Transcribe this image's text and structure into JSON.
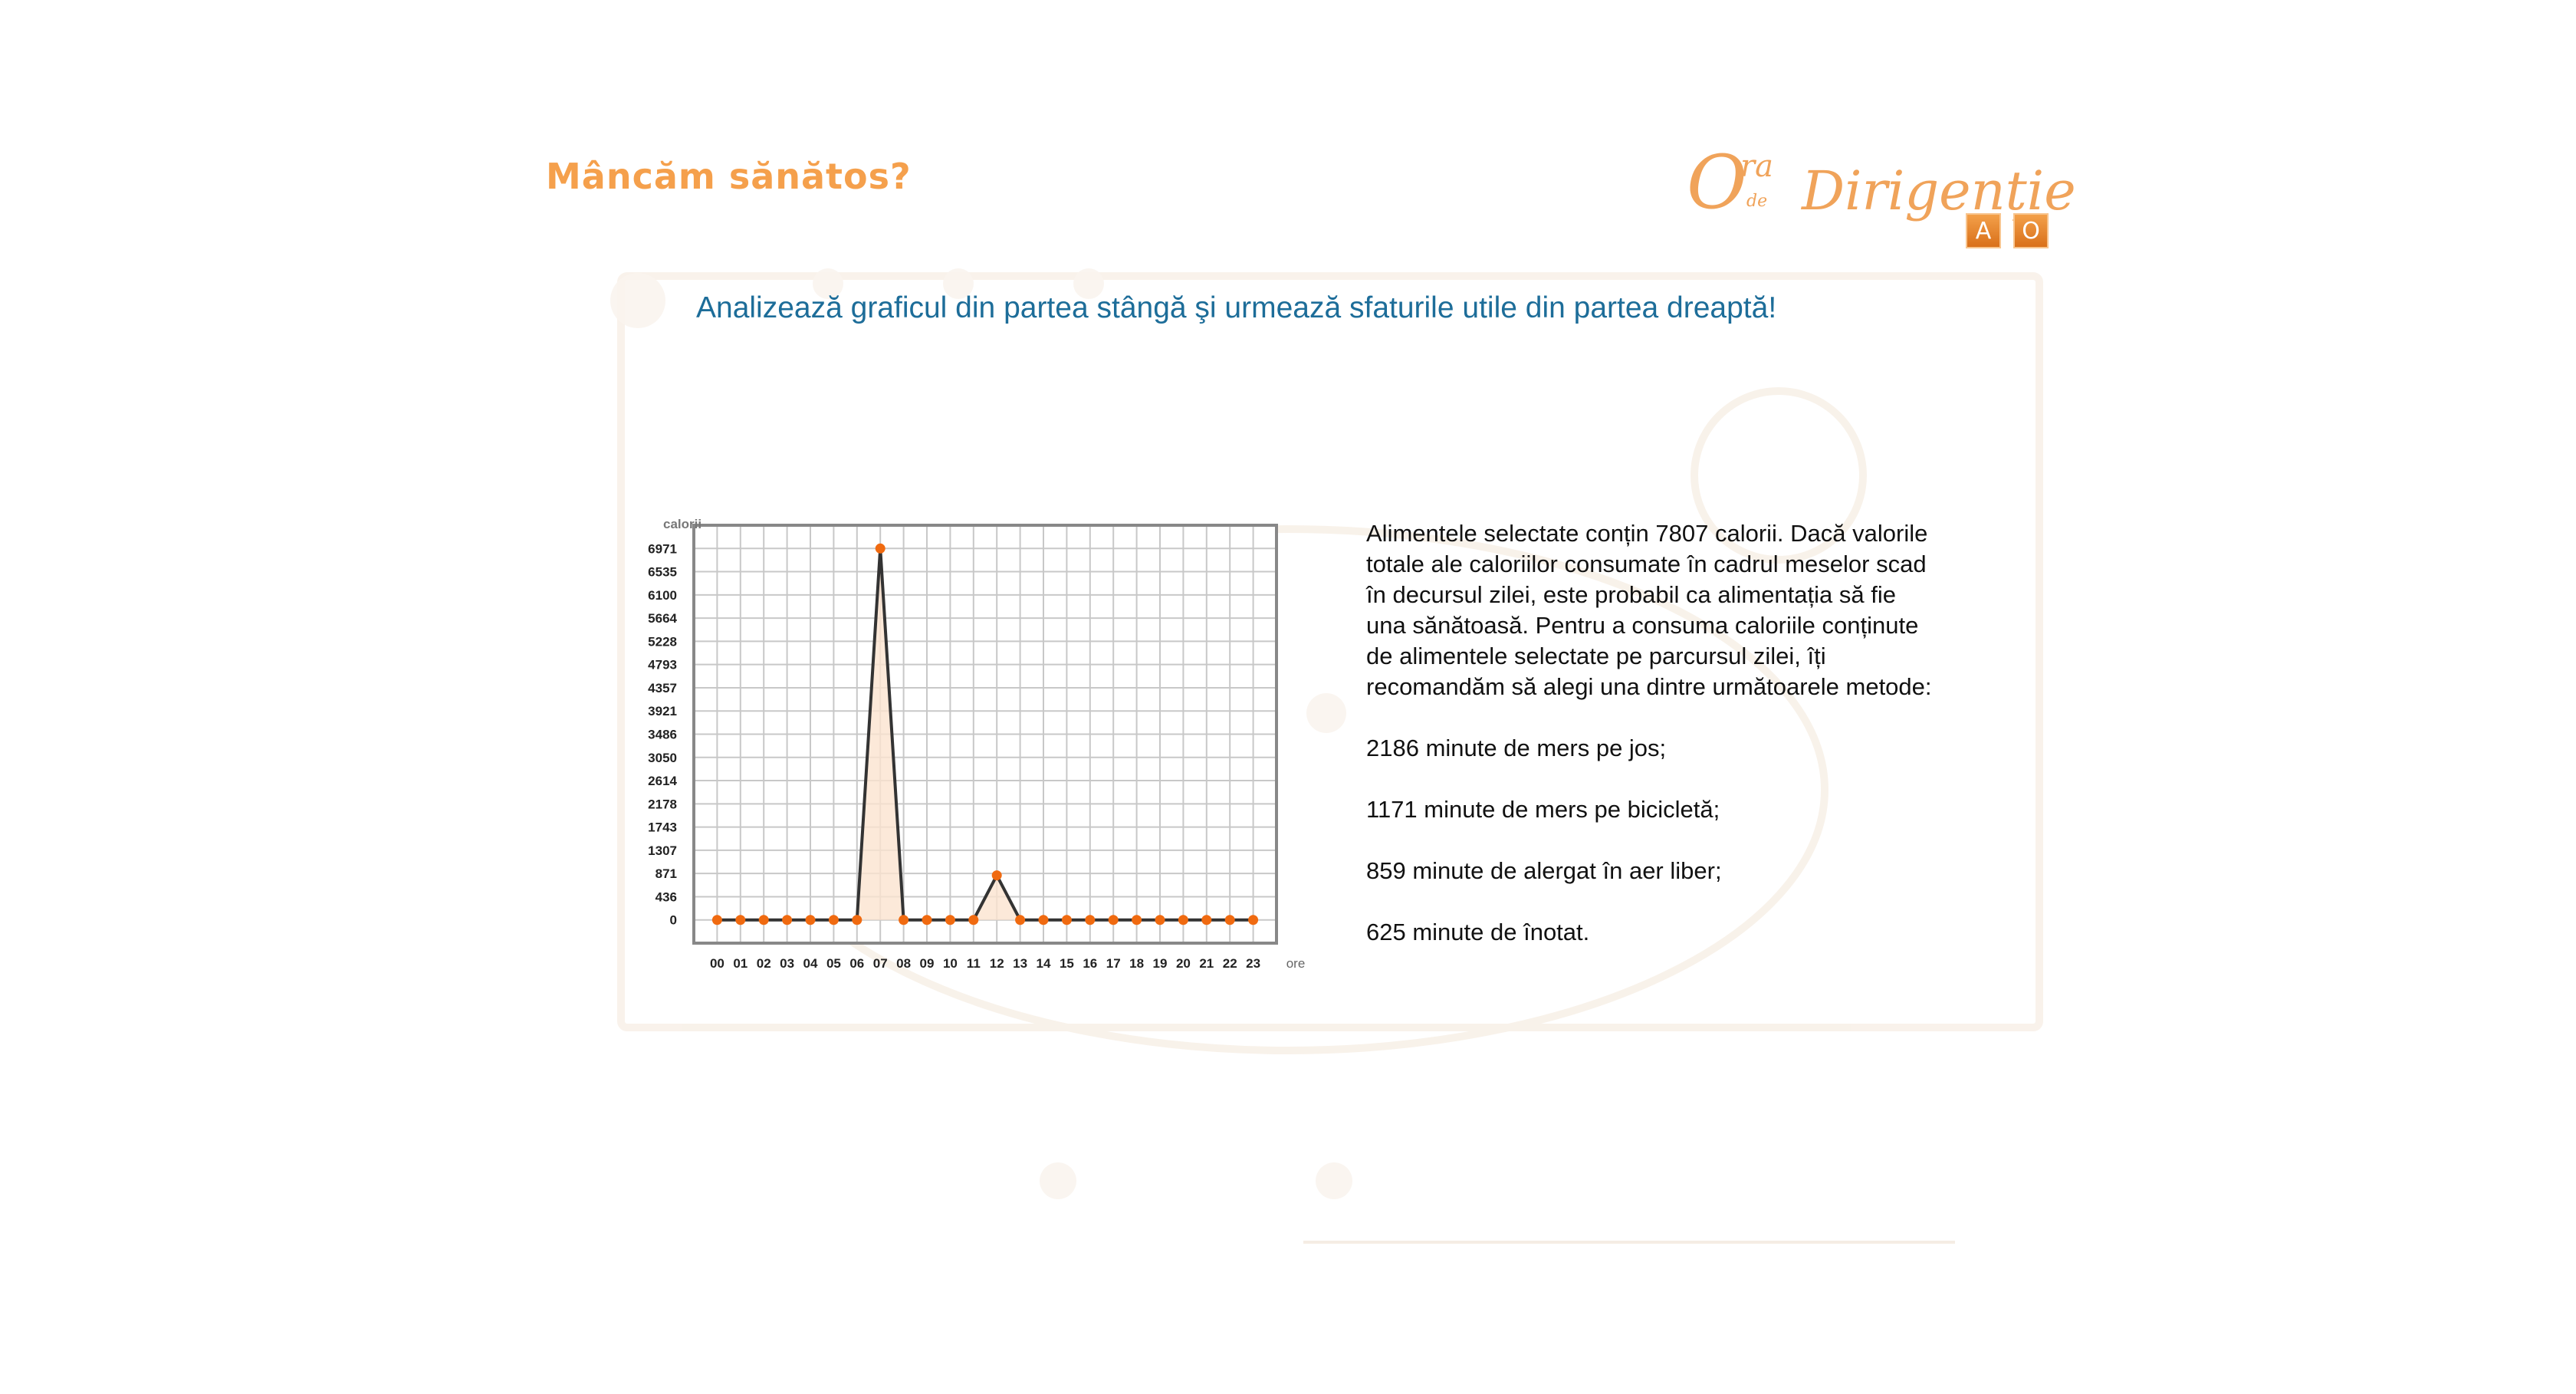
{
  "header": {
    "title": "Mâncăm sănătos?",
    "logo": {
      "script_big_letter": "O",
      "script_ra": "ra",
      "script_de": "de",
      "script_dirigentie": "Dirigenție",
      "badge_a": "A",
      "badge_o": "O"
    }
  },
  "instruction": "Analizează graficul din partea stângă şi urmează sfaturile utile din partea dreaptă!",
  "chart_data": {
    "type": "line",
    "ylabel": "calorii",
    "xlabel": "ore",
    "categories": [
      "00",
      "01",
      "02",
      "03",
      "04",
      "05",
      "06",
      "07",
      "08",
      "09",
      "10",
      "11",
      "12",
      "13",
      "14",
      "15",
      "16",
      "17",
      "18",
      "19",
      "20",
      "21",
      "22",
      "23"
    ],
    "values": [
      0,
      0,
      0,
      0,
      0,
      0,
      0,
      6971,
      0,
      0,
      0,
      0,
      836,
      0,
      0,
      0,
      0,
      0,
      0,
      0,
      0,
      0,
      0,
      0
    ],
    "y_ticks": [
      "0",
      "436",
      "871",
      "1307",
      "1743",
      "2178",
      "2614",
      "3050",
      "3486",
      "3921",
      "4357",
      "4793",
      "5228",
      "5664",
      "6100",
      "6535",
      "6971"
    ],
    "ylim": [
      0,
      7407
    ],
    "grid": true,
    "colors": {
      "line": "#333333",
      "marker": "#f06a10",
      "fill": "#fbe3d0",
      "grid": "#c8c8c8",
      "frame": "#888888"
    }
  },
  "advice": {
    "summary": "Alimentele selectate conțin 7807 calorii. Dacă valorile totale ale caloriilor consumate în cadrul meselor scad în decursul zilei, este probabil ca alimentația să fie una sănătoasă. Pentru a consuma caloriile conținute de alimentele selectate pe parcursul zilei, îți recomandăm să alegi una dintre următoarele metode:",
    "methods": [
      "2186 minute de mers pe jos;",
      "1171 minute de mers pe bicicletă;",
      "859 minute de alergat în aer liber;",
      "625 minute de înotat."
    ]
  }
}
